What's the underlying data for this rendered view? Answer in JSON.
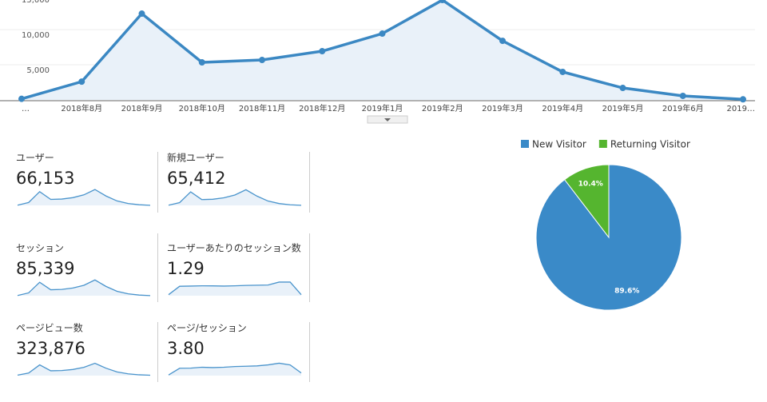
{
  "chart_data": [
    {
      "type": "line",
      "categories": [
        "…",
        "2018年8月",
        "2018年9月",
        "2018年10月",
        "2018年11月",
        "2018年12月",
        "2019年1月",
        "2019年2月",
        "2019年3月",
        "2019年4月",
        "2019年5月",
        "2019年6月",
        "2019…"
      ],
      "values": [
        150,
        2600,
        12270,
        5340,
        5680,
        6930,
        9430,
        14200,
        8400,
        3980,
        1700,
        570,
        80
      ],
      "color": "#3b88c3",
      "ylim": [
        0,
        15000
      ],
      "yticks": [
        {
          "value": 5000,
          "label": "5,000"
        },
        {
          "value": 10000,
          "label": "10,000"
        },
        {
          "value": 15000,
          "label": "15,000"
        }
      ],
      "grid": true
    },
    {
      "type": "pie",
      "categories": [
        "New Visitor",
        "Returning Visitor"
      ],
      "values": [
        89.6,
        10.4
      ],
      "value_labels": [
        "89.6%",
        "10.4%"
      ],
      "colors": [
        "#3a8ac8",
        "#55b52f"
      ],
      "legend": "top"
    }
  ],
  "metrics": [
    {
      "label": "ユーザー",
      "value": "66,153",
      "spark": [
        150,
        2600,
        12270,
        5340,
        5680,
        6930,
        9430,
        14200,
        8400,
        3980,
        1700,
        570,
        80
      ],
      "ylim": [
        0,
        15000
      ]
    },
    {
      "label": "新規ユーザー",
      "value": "65,412",
      "spark": [
        140,
        2500,
        12100,
        5200,
        5500,
        6800,
        9300,
        14000,
        8300,
        3900,
        1650,
        550,
        70
      ],
      "ylim": [
        0,
        15000
      ]
    },
    {
      "label": "セッション",
      "value": "85,339",
      "spark": [
        200,
        3300,
        15600,
        6900,
        7300,
        8900,
        12100,
        18300,
        10800,
        5100,
        2200,
        740,
        100
      ],
      "ylim": [
        0,
        19500
      ]
    },
    {
      "label": "ユーザーあたりのセッション数",
      "value": "1.29",
      "spark": [
        0.85,
        1.25,
        1.26,
        1.27,
        1.27,
        1.26,
        1.27,
        1.29,
        1.3,
        1.31,
        1.45,
        1.45,
        0.85
      ],
      "ylim": [
        0.8,
        1.6
      ]
    },
    {
      "label": "ページビュー数",
      "value": "323,876",
      "spark": [
        700,
        12700,
        60000,
        26000,
        27500,
        33500,
        46000,
        69500,
        41000,
        19400,
        8300,
        2800,
        400
      ],
      "ylim": [
        -2000,
        95000
      ]
    },
    {
      "label": "ページ/セッション",
      "value": "3.80",
      "spark": [
        2.6,
        3.6,
        3.62,
        3.75,
        3.7,
        3.75,
        3.85,
        3.9,
        3.95,
        4.1,
        4.35,
        4.1,
        2.9
      ],
      "ylim": [
        2.5,
        5
      ]
    }
  ]
}
